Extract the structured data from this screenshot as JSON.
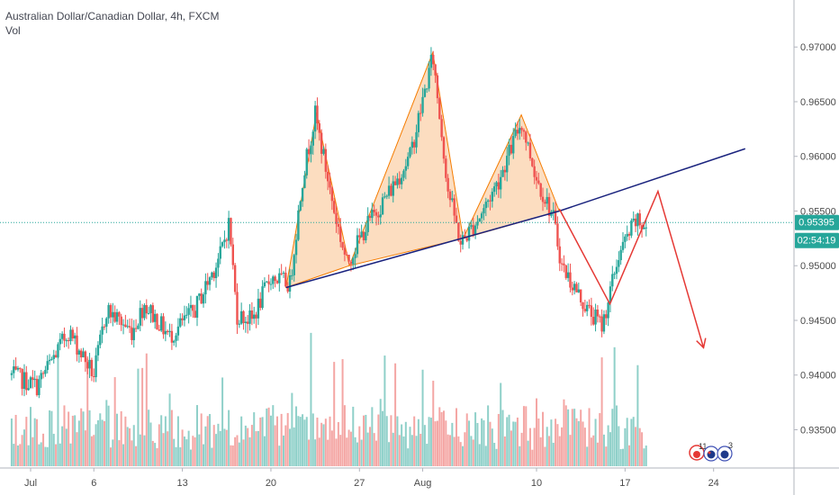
{
  "legend": {
    "title": "Australian Dollar/Canadian Dollar, 4h, FXCM",
    "indicator": "Vol"
  },
  "price_badges": {
    "last_price": "0.95395",
    "countdown": "02:54:19"
  },
  "event_icons": {
    "left_count": "11",
    "right_count": "3"
  },
  "colors": {
    "up": "#26a69a",
    "down": "#ef5350",
    "vol_up": "#8fd0c9",
    "vol_down": "#f4a6a4",
    "pattern_fill": "#fbd5b0",
    "pattern_stroke": "#f57c00",
    "trendline": "#1a237e",
    "projection": "#e53935",
    "price_line": "#26a69a"
  },
  "chart_data": {
    "type": "candlestick",
    "symbol": "Australian Dollar/Canadian Dollar",
    "interval": "4h",
    "source": "FXCM",
    "y_axis": {
      "range": [
        0.9315,
        0.9743
      ],
      "ticks": [
        "0.97000",
        "0.96500",
        "0.96000",
        "0.95500",
        "0.95000",
        "0.94500",
        "0.94000",
        "0.93500"
      ]
    },
    "x_axis": {
      "ticks": [
        {
          "label": "Jul",
          "day": 0
        },
        {
          "label": "6",
          "day": 5
        },
        {
          "label": "13",
          "day": 12
        },
        {
          "label": "20",
          "day": 19
        },
        {
          "label": "27",
          "day": 26
        },
        {
          "label": "Aug",
          "day": 31
        },
        {
          "label": "10",
          "day": 40
        },
        {
          "label": "17",
          "day": 47
        },
        {
          "label": "24",
          "day": 54
        }
      ]
    },
    "anchors": [
      {
        "day": -1.5,
        "price": 0.94
      },
      {
        "day": 0.5,
        "price": 0.939
      },
      {
        "day": 3,
        "price": 0.944
      },
      {
        "day": 5,
        "price": 0.94
      },
      {
        "day": 6,
        "price": 0.946
      },
      {
        "day": 8,
        "price": 0.944
      },
      {
        "day": 9,
        "price": 0.9465
      },
      {
        "day": 11,
        "price": 0.9435
      },
      {
        "day": 13,
        "price": 0.946
      },
      {
        "day": 15,
        "price": 0.951
      },
      {
        "day": 15.7,
        "price": 0.954
      },
      {
        "day": 16.3,
        "price": 0.9455
      },
      {
        "day": 17.5,
        "price": 0.945
      },
      {
        "day": 19,
        "price": 0.949
      },
      {
        "day": 20.5,
        "price": 0.9483
      },
      {
        "day": 21.5,
        "price": 0.958
      },
      {
        "day": 22.5,
        "price": 0.9638
      },
      {
        "day": 24,
        "price": 0.955
      },
      {
        "day": 25,
        "price": 0.9502
      },
      {
        "day": 26.5,
        "price": 0.9535
      },
      {
        "day": 28.5,
        "price": 0.957
      },
      {
        "day": 30,
        "price": 0.96
      },
      {
        "day": 31.8,
        "price": 0.9692
      },
      {
        "day": 33,
        "price": 0.957
      },
      {
        "day": 34,
        "price": 0.952
      },
      {
        "day": 35.5,
        "price": 0.9545
      },
      {
        "day": 37,
        "price": 0.9578
      },
      {
        "day": 38.8,
        "price": 0.9632
      },
      {
        "day": 40,
        "price": 0.958
      },
      {
        "day": 41.3,
        "price": 0.9545
      },
      {
        "day": 42,
        "price": 0.95
      },
      {
        "day": 44,
        "price": 0.946
      },
      {
        "day": 45.2,
        "price": 0.9445
      },
      {
        "day": 46.5,
        "price": 0.951
      },
      {
        "day": 47.8,
        "price": 0.954
      },
      {
        "day": 48.7,
        "price": 0.9535
      }
    ],
    "volume_note": "bottom pane volume bars",
    "annotations": {
      "pattern_triangles": [
        [
          {
            "day": 20.2,
            "price": 0.948
          },
          {
            "day": 22.6,
            "price": 0.964
          },
          {
            "day": 25.2,
            "price": 0.95
          }
        ],
        [
          {
            "day": 25.2,
            "price": 0.95
          },
          {
            "day": 31.8,
            "price": 0.9695
          },
          {
            "day": 34.2,
            "price": 0.9525
          }
        ],
        [
          {
            "day": 34.2,
            "price": 0.9525
          },
          {
            "day": 38.8,
            "price": 0.9638
          },
          {
            "day": 41.8,
            "price": 0.955
          }
        ]
      ],
      "neckline": [
        {
          "day": 20.2,
          "price": 0.948
        },
        {
          "day": 41.8,
          "price": 0.955
        }
      ],
      "trendline_extension": [
        {
          "day": 41.8,
          "price": 0.955
        },
        {
          "day": 56.5,
          "price": 0.9607
        }
      ],
      "projection_path": [
        {
          "day": 41.8,
          "price": 0.9552
        },
        {
          "day": 45.8,
          "price": 0.9465
        },
        {
          "day": 49.6,
          "price": 0.9568
        },
        {
          "day": 53.2,
          "price": 0.9425
        }
      ],
      "price_line": 0.95395
    }
  }
}
